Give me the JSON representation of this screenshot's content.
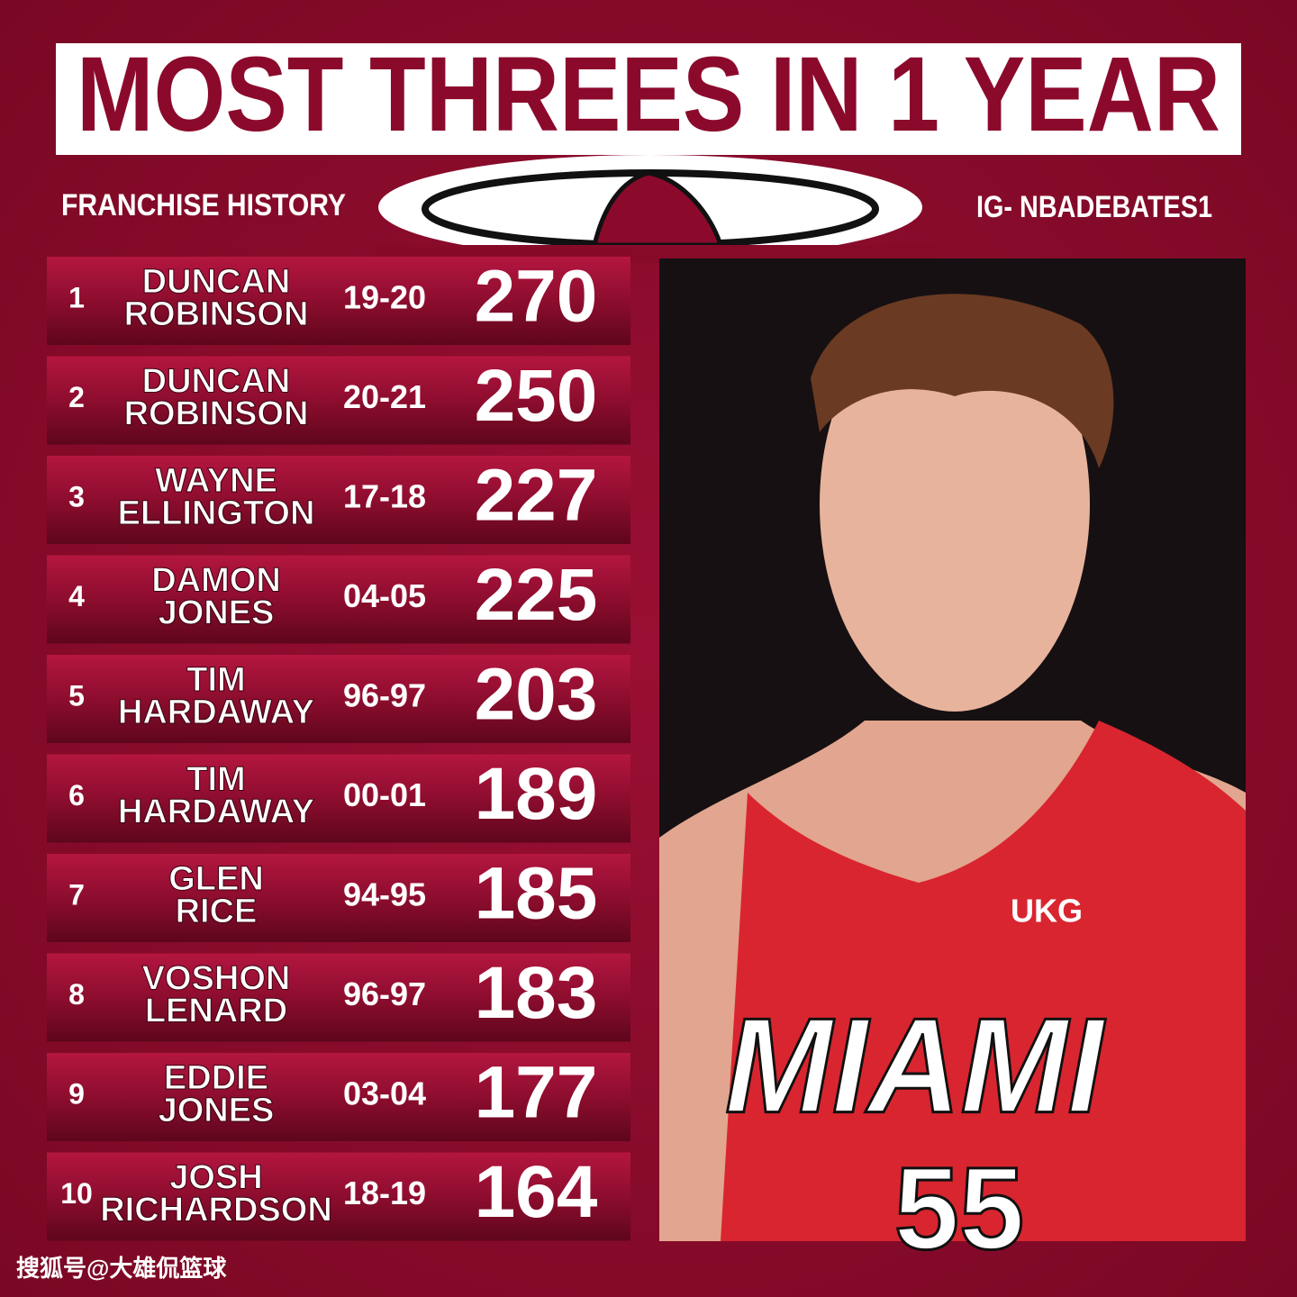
{
  "header": {
    "title": "MOST THREES IN 1 YEAR",
    "subtitle": "FRANCHISE HISTORY",
    "handle": "IG- NBADEBATES1"
  },
  "table": {
    "rows": [
      {
        "rank": 1,
        "name": [
          "DUNCAN",
          "ROBINSON"
        ],
        "season": "19-20",
        "threes": 270
      },
      {
        "rank": 2,
        "name": [
          "DUNCAN",
          "ROBINSON"
        ],
        "season": "20-21",
        "threes": 250
      },
      {
        "rank": 3,
        "name": [
          "WAYNE",
          "ELLINGTON"
        ],
        "season": "17-18",
        "threes": 227
      },
      {
        "rank": 4,
        "name": [
          "DAMON",
          "JONES"
        ],
        "season": "04-05",
        "threes": 225
      },
      {
        "rank": 5,
        "name": [
          "TIM",
          "HARDAWAY"
        ],
        "season": "96-97",
        "threes": 203
      },
      {
        "rank": 6,
        "name": [
          "TIM",
          "HARDAWAY"
        ],
        "season": "00-01",
        "threes": 189
      },
      {
        "rank": 7,
        "name": [
          "GLEN",
          "RICE"
        ],
        "season": "94-95",
        "threes": 185
      },
      {
        "rank": 8,
        "name": [
          "VOSHON",
          "LENARD"
        ],
        "season": "96-97",
        "threes": 183
      },
      {
        "rank": 9,
        "name": [
          "EDDIE",
          "JONES"
        ],
        "season": "03-04",
        "threes": 177
      },
      {
        "rank": 10,
        "name": [
          "JOSH",
          "RICHARDSON"
        ],
        "season": "18-19",
        "threes": 164
      }
    ]
  },
  "photo": {
    "sponsor": "UKG",
    "team": "MIAMI",
    "number": "55"
  },
  "watermark": "搜狐号@大雄侃篮球"
}
